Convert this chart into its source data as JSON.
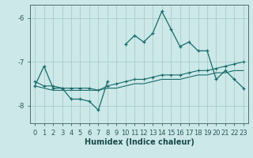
{
  "xlabel": "Humidex (Indice chaleur)",
  "bg_color": "#cce8e8",
  "grid_color": "#aacccc",
  "line_color": "#1a6b6b",
  "x_values": [
    0,
    1,
    2,
    3,
    4,
    5,
    6,
    7,
    8,
    9,
    10,
    11,
    12,
    13,
    14,
    15,
    16,
    17,
    18,
    19,
    20,
    21,
    22,
    23
  ],
  "line1_y": [
    -7.55,
    -7.1,
    -7.6,
    -7.6,
    -7.85,
    -7.85,
    -7.9,
    -8.1,
    -7.45,
    null,
    -6.6,
    -6.4,
    -6.55,
    -6.35,
    -5.85,
    -6.25,
    -6.65,
    -6.55,
    -6.75,
    -6.75,
    -7.4,
    -7.2,
    -7.4,
    -7.6
  ],
  "line2_y": [
    -7.45,
    -7.55,
    -7.55,
    -7.6,
    -7.6,
    -7.6,
    -7.6,
    -7.65,
    -7.55,
    -7.5,
    -7.45,
    -7.4,
    -7.4,
    -7.35,
    -7.3,
    -7.3,
    -7.3,
    -7.25,
    -7.2,
    -7.2,
    -7.15,
    -7.1,
    -7.05,
    -7.0
  ],
  "line3_y": [
    -7.55,
    -7.6,
    -7.65,
    -7.65,
    -7.65,
    -7.65,
    -7.65,
    -7.65,
    -7.6,
    -7.6,
    -7.55,
    -7.5,
    -7.5,
    -7.45,
    -7.4,
    -7.4,
    -7.4,
    -7.35,
    -7.3,
    -7.3,
    -7.25,
    -7.25,
    -7.2,
    -7.2
  ],
  "ylim": [
    -8.4,
    -5.7
  ],
  "yticks": [
    -8.0,
    -7.0,
    -6.0
  ],
  "xlim": [
    -0.5,
    23.5
  ],
  "label_fontsize": 7,
  "tick_fontsize": 6
}
